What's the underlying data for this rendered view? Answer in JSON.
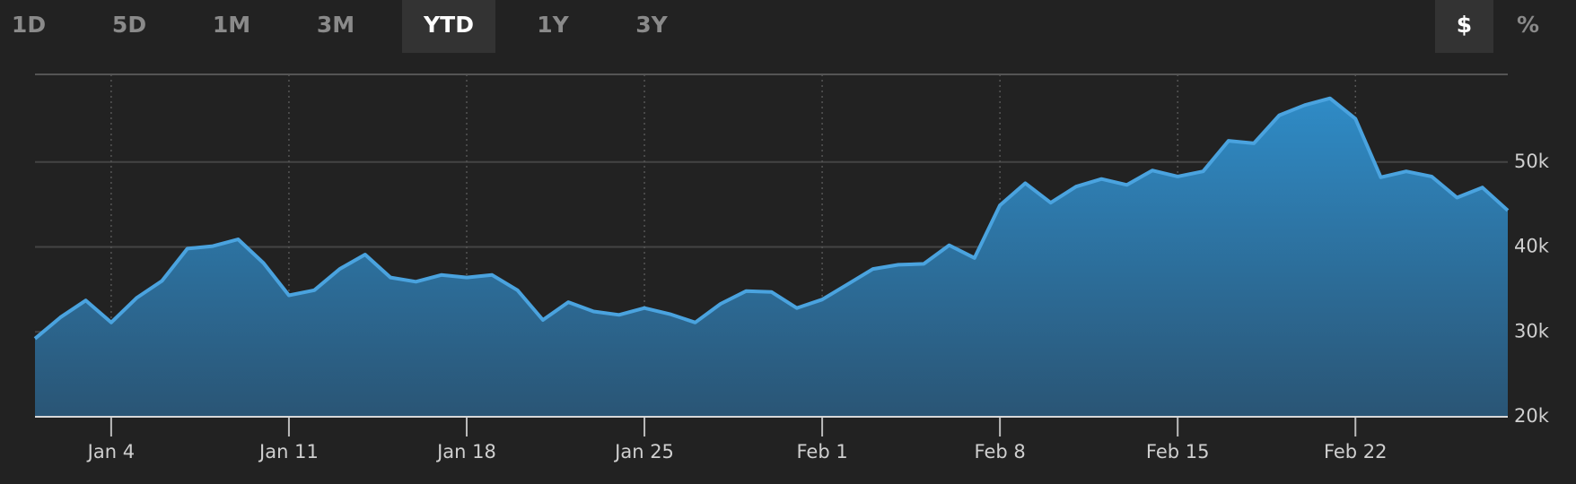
{
  "controls": {
    "ranges": [
      "1D",
      "5D",
      "1M",
      "3M",
      "YTD",
      "1Y",
      "3Y"
    ],
    "active_range": 4,
    "units": [
      "$",
      "%"
    ],
    "active_unit": 0
  },
  "chart_data": {
    "type": "area",
    "categories": [
      null,
      null,
      null,
      "Jan 4",
      null,
      null,
      null,
      null,
      null,
      null,
      "Jan 11",
      null,
      null,
      null,
      null,
      null,
      null,
      "Jan 18",
      null,
      null,
      null,
      null,
      null,
      null,
      "Jan 25",
      null,
      null,
      null,
      null,
      null,
      null,
      "Feb 1",
      null,
      null,
      null,
      null,
      null,
      null,
      "Feb 8",
      null,
      null,
      null,
      null,
      null,
      null,
      "Feb 15",
      null,
      null,
      null,
      null,
      null,
      null,
      "Feb 22",
      null,
      null,
      null,
      null,
      null,
      null
    ],
    "values": [
      29200,
      31700,
      33700,
      31100,
      34000,
      36000,
      39800,
      40100,
      40900,
      38100,
      34300,
      34900,
      37400,
      39100,
      36400,
      35900,
      36700,
      36400,
      36700,
      34900,
      31400,
      33500,
      32400,
      32000,
      32800,
      32100,
      31100,
      33300,
      34800,
      34700,
      32800,
      33800,
      35600,
      37400,
      37900,
      38000,
      40200,
      38700,
      44900,
      47500,
      45200,
      47100,
      48000,
      47300,
      49000,
      48300,
      48900,
      52500,
      52200,
      55500,
      56700,
      57500,
      55100,
      48200,
      48900,
      48300,
      45800,
      47000,
      44300
    ],
    "color": "#4aa3df",
    "ylim": [
      20000,
      60000
    ],
    "yticks": [
      {
        "value": 20000,
        "label": "20k"
      },
      {
        "value": 30000,
        "label": "30k"
      },
      {
        "value": 40000,
        "label": "40k"
      },
      {
        "value": 50000,
        "label": "50k"
      }
    ],
    "grid": true
  }
}
